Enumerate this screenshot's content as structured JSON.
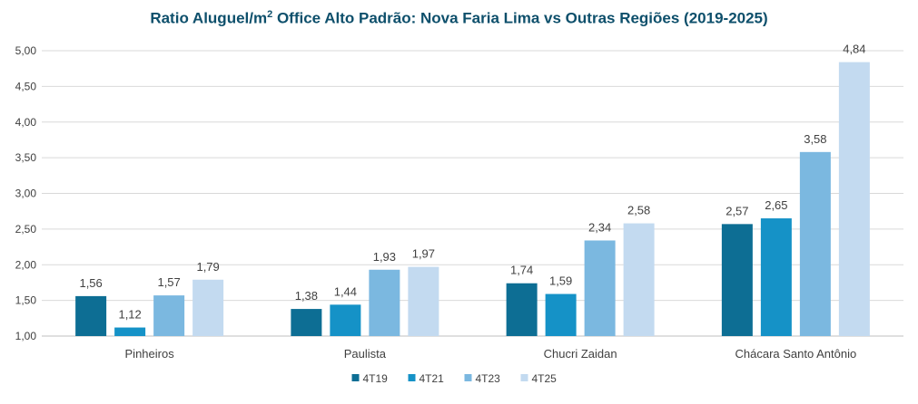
{
  "chart_data": {
    "type": "bar",
    "title": {
      "prefix": "Ratio Aluguel/m",
      "superscript": "2",
      "suffix": " Office Alto Padrão: Nova Faria Lima vs Outras Regiões (2019-2025)"
    },
    "xlabel": "",
    "ylabel": "",
    "ylim": [
      1.0,
      5.0
    ],
    "yticks": [
      "1,00",
      "1,50",
      "2,00",
      "2,50",
      "3,00",
      "3,50",
      "4,00",
      "4,50",
      "5,00"
    ],
    "ytick_values": [
      1.0,
      1.5,
      2.0,
      2.5,
      3.0,
      3.5,
      4.0,
      4.5,
      5.0
    ],
    "grid": true,
    "legend_position": "bottom",
    "categories": [
      "Pinheiros",
      "Paulista",
      "Chucri Zaidan",
      "Chácara Santo Antônio"
    ],
    "series": [
      {
        "name": "4T19",
        "color": "#0d6e94",
        "values": [
          1.56,
          1.38,
          1.74,
          2.57
        ],
        "labels": [
          "1,56",
          "1,38",
          "1,74",
          "2,57"
        ]
      },
      {
        "name": "4T21",
        "color": "#1592c7",
        "values": [
          1.12,
          1.44,
          1.59,
          2.65
        ],
        "labels": [
          "1,12",
          "1,44",
          "1,59",
          "2,65"
        ]
      },
      {
        "name": "4T23",
        "color": "#7bb8e0",
        "values": [
          1.57,
          1.93,
          2.34,
          3.58
        ],
        "labels": [
          "1,57",
          "1,93",
          "2,34",
          "3,58"
        ]
      },
      {
        "name": "4T25",
        "color": "#c3daf0",
        "values": [
          1.79,
          1.97,
          2.58,
          4.84
        ],
        "labels": [
          "1,79",
          "1,97",
          "2,58",
          "4,84"
        ]
      }
    ]
  }
}
